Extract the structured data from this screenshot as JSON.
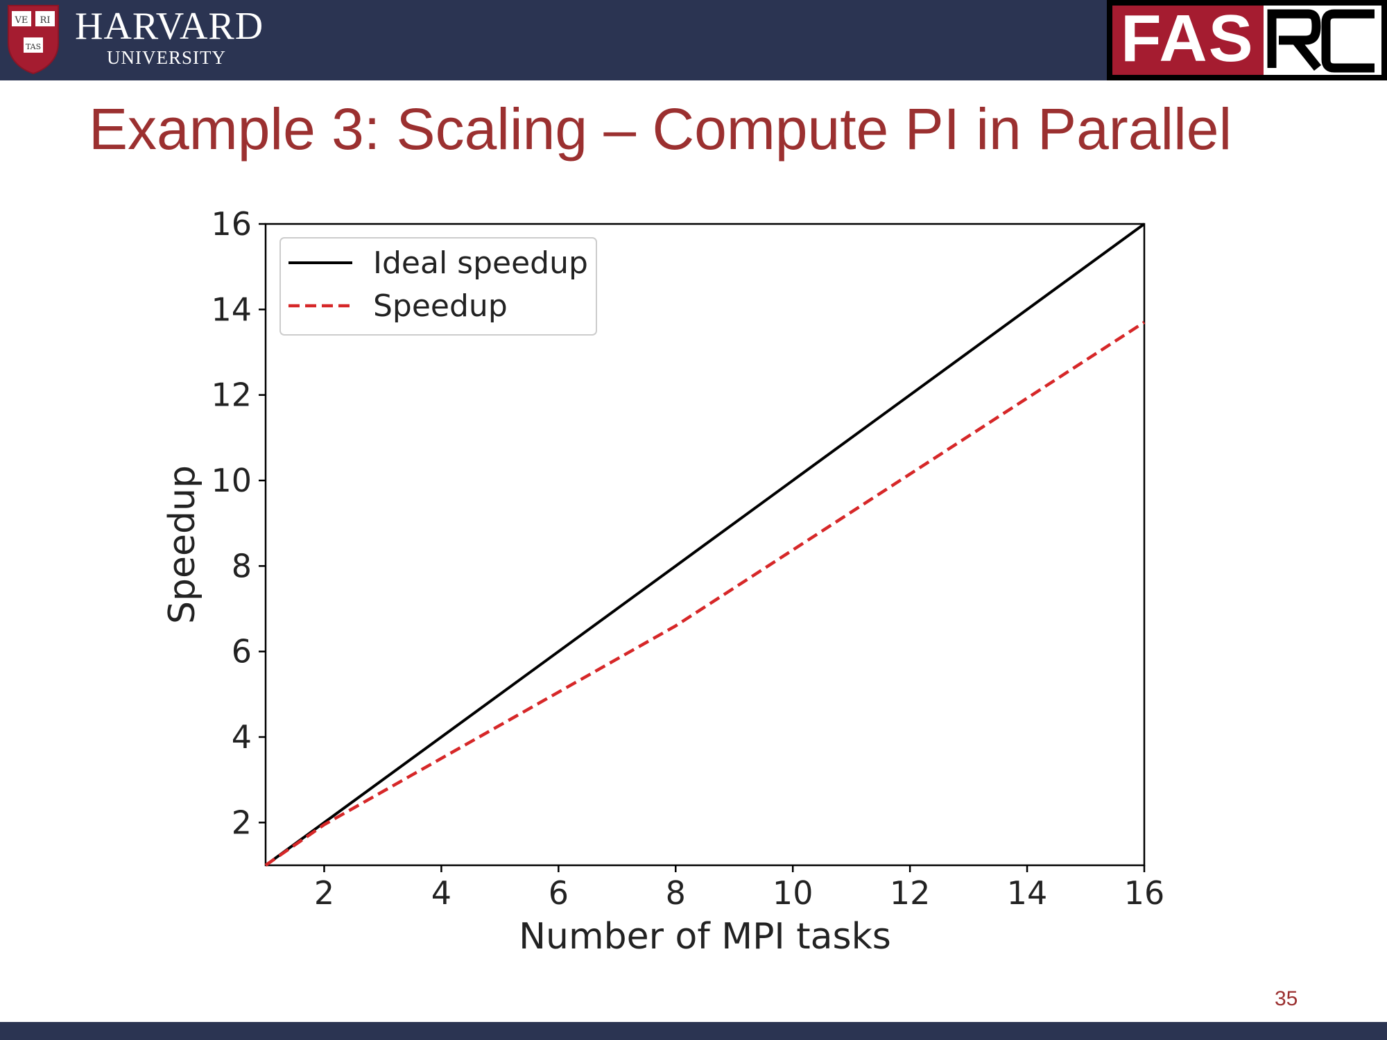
{
  "header": {
    "logo_left": {
      "name": "HARVARD",
      "subtitle": "UNIVERSITY",
      "shield_text": [
        "VE",
        "RI",
        "TAS"
      ]
    },
    "logo_right": {
      "part1": "FAS",
      "part2": "RC"
    },
    "colors": {
      "header_bg": "#2b3452",
      "crimson": "#a51c30"
    }
  },
  "slide": {
    "title": "Example 3: Scaling – Compute PI in Parallel",
    "page_number": "35",
    "title_color": "#9b3030"
  },
  "chart_data": {
    "type": "line",
    "title": "",
    "xlabel": "Number of MPI tasks",
    "ylabel": "Speedup",
    "xlim": [
      1,
      16
    ],
    "ylim": [
      1,
      16
    ],
    "xticks": [
      2,
      4,
      6,
      8,
      10,
      12,
      14,
      16
    ],
    "yticks": [
      2,
      4,
      6,
      8,
      10,
      12,
      14,
      16
    ],
    "grid": false,
    "legend": "top-left",
    "series": [
      {
        "name": "Ideal speedup",
        "style": "solid",
        "color": "#000000",
        "x": [
          1,
          2,
          4,
          8,
          16
        ],
        "y": [
          1,
          2,
          4,
          8,
          16
        ]
      },
      {
        "name": "Speedup",
        "style": "dashed",
        "color": "#d62728",
        "x": [
          1,
          2,
          4,
          8,
          16
        ],
        "y": [
          1,
          1.95,
          3.5,
          6.6,
          13.7
        ]
      }
    ]
  }
}
